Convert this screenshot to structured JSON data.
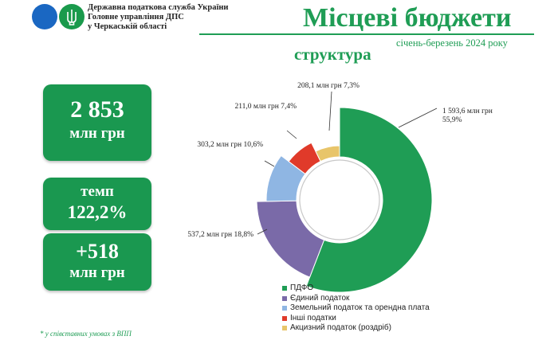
{
  "header": {
    "org_lines": [
      "Державна податкова служба України",
      "Головне управління ДПС",
      "у Черкаській області"
    ],
    "title": "Місцеві бюджети",
    "period": "січень-березень 2024 року",
    "subtitle": "структура"
  },
  "cards": {
    "total_value": "2 853",
    "total_unit": "млн грн",
    "tempo_label": "темп",
    "tempo_value": "122,2%",
    "delta_value": "+518",
    "delta_unit": "млн грн"
  },
  "footnote": "* у співставних умовах з ВПП",
  "colors": {
    "green": "#1f9d55",
    "card": "#1a9850",
    "logo_blue": "#1a67c2",
    "logo_green": "#1a9a4c"
  },
  "chart_data": {
    "type": "pie",
    "style": "donut with outer ring of colored segments",
    "legend_position": "bottom",
    "series": [
      {
        "name": "ПДФО",
        "value": 1593.6,
        "percent": 55.9,
        "color": "#1f9d55",
        "label": "1 593,6 млн грн\n55,9%"
      },
      {
        "name": "Єдиний податок",
        "value": 537.2,
        "percent": 18.8,
        "color": "#7a6aa8",
        "label": "537,2 млн грн 18,8%"
      },
      {
        "name": "Земельний податок та орендна плата",
        "value": 303.2,
        "percent": 10.6,
        "color": "#8fb6e3",
        "label": "303,2 млн грн 10,6%"
      },
      {
        "name": "Інші податки",
        "value": 211.0,
        "percent": 7.4,
        "color": "#e03a2a",
        "label": "211,0 млн грн 7,4%"
      },
      {
        "name": "Акцизний податок (роздріб)",
        "value": 208.1,
        "percent": 7.3,
        "color": "#e8c56a",
        "label": "208,1 млн грн 7,3%"
      }
    ]
  }
}
